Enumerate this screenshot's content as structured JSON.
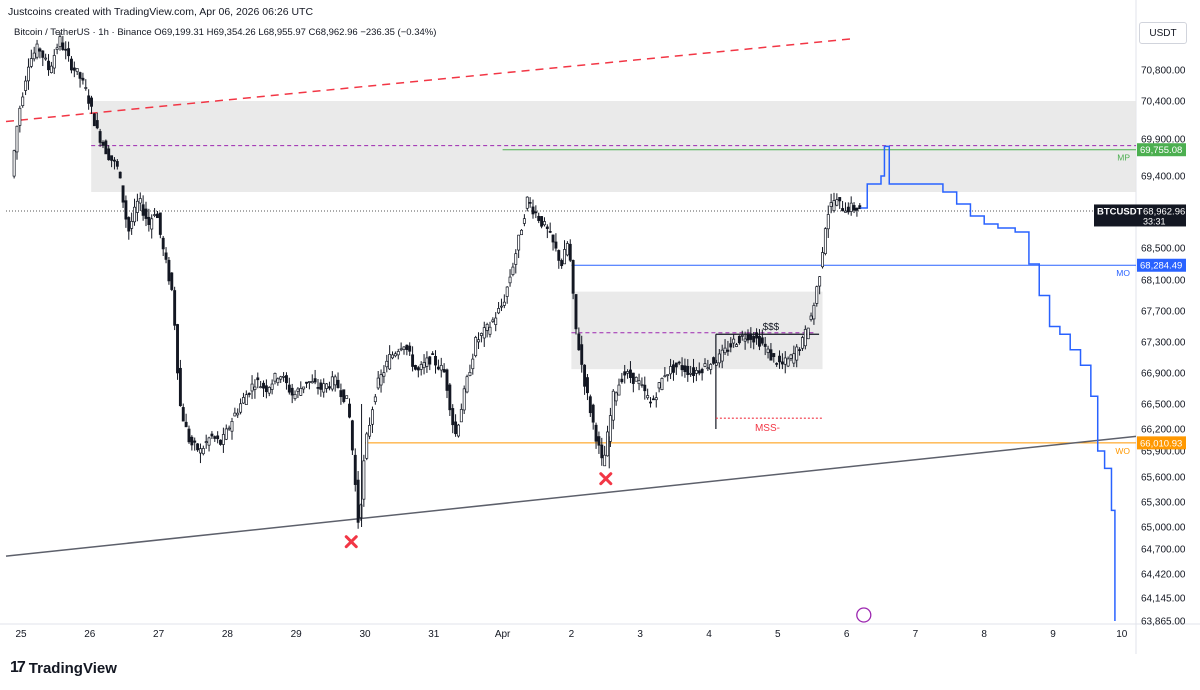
{
  "header": {
    "created_by": "Justcoins created with TradingView.com, Apr 06, 2026 06:26 UTC"
  },
  "legend": {
    "symbol": "Bitcoin / TetherUS · 1h · Binance",
    "open": "O69,199.31",
    "high": "H69,354.26",
    "low": "L68,955.97",
    "close": "C68,962.96",
    "change": "−236.35 (−0.34%)"
  },
  "quote_currency": "USDT",
  "footer": {
    "brand": "TradingView"
  },
  "colors": {
    "up": "#131722",
    "down": "#131722",
    "projection": "#2962ff",
    "zone": "#e6e6e6",
    "mp": "#4caf50",
    "mo": "#2962ff",
    "wo": "#ff9800",
    "trend_red": "#f23645",
    "mss": "#f23645"
  },
  "chart_data": {
    "type": "candlestick",
    "symbol": "BTCUSDT",
    "interval": "1h",
    "x_ticks": [
      "25",
      "26",
      "27",
      "28",
      "29",
      "30",
      "31",
      "Apr",
      "2",
      "3",
      "4",
      "5",
      "6",
      "7",
      "8",
      "9",
      "10"
    ],
    "y_ticks": [
      "70,800.00",
      "70,400.00",
      "69,900.00",
      "69,400.00",
      "68,500.00",
      "68,100.00",
      "67,700.00",
      "67,300.00",
      "66,900.00",
      "66,500.00",
      "66,200.00",
      "65,900.00",
      "65,600.00",
      "65,300.00",
      "65,000.00",
      "64,700.00",
      "64,420.00",
      "64,145.00",
      "63,865.00"
    ],
    "ylim": [
      63800,
      71400
    ],
    "price_labels": [
      {
        "name": "MP",
        "value": 69755.08,
        "text": "69,755.08"
      },
      {
        "name": "BTCUSDT",
        "value": 68962.96,
        "text": "68,962.96",
        "countdown": "33:31"
      },
      {
        "name": "MO",
        "value": 68284.49,
        "text": "68,284.49"
      },
      {
        "name": "WO",
        "value": 66010.93,
        "text": "66,010.93"
      }
    ],
    "annotations": {
      "liquidity": "$$$",
      "mss": "MSS-"
    },
    "price_path": [
      [
        24.9,
        69400
      ],
      [
        25.0,
        70200
      ],
      [
        25.15,
        70900
      ],
      [
        25.3,
        71100
      ],
      [
        25.45,
        70800
      ],
      [
        25.6,
        71200
      ],
      [
        25.75,
        70900
      ],
      [
        25.9,
        70700
      ],
      [
        26.0,
        70500
      ],
      [
        26.15,
        70000
      ],
      [
        26.3,
        69700
      ],
      [
        26.45,
        69500
      ],
      [
        26.6,
        68700
      ],
      [
        26.75,
        69100
      ],
      [
        26.9,
        68800
      ],
      [
        27.0,
        69000
      ],
      [
        27.1,
        68500
      ],
      [
        27.25,
        67900
      ],
      [
        27.35,
        66500
      ],
      [
        27.5,
        66000
      ],
      [
        27.65,
        65900
      ],
      [
        27.8,
        66100
      ],
      [
        27.95,
        66000
      ],
      [
        28.1,
        66300
      ],
      [
        28.3,
        66600
      ],
      [
        28.45,
        66800
      ],
      [
        28.6,
        66700
      ],
      [
        28.8,
        66900
      ],
      [
        29.0,
        66600
      ],
      [
        29.2,
        66800
      ],
      [
        29.4,
        66700
      ],
      [
        29.6,
        66800
      ],
      [
        29.8,
        66500
      ],
      [
        29.95,
        65000
      ],
      [
        30.05,
        66000
      ],
      [
        30.2,
        66700
      ],
      [
        30.4,
        67100
      ],
      [
        30.6,
        67300
      ],
      [
        30.8,
        66900
      ],
      [
        31.0,
        67100
      ],
      [
        31.2,
        66900
      ],
      [
        31.35,
        66100
      ],
      [
        31.5,
        66700
      ],
      [
        31.65,
        67300
      ],
      [
        31.85,
        67500
      ],
      [
        32.05,
        67800
      ],
      [
        32.25,
        68500
      ],
      [
        32.4,
        69100
      ],
      [
        32.55,
        68900
      ],
      [
        32.7,
        68700
      ],
      [
        32.9,
        68300
      ],
      [
        33.0,
        68600
      ],
      [
        33.1,
        67500
      ],
      [
        33.25,
        66700
      ],
      [
        33.4,
        66100
      ],
      [
        33.5,
        65700
      ],
      [
        33.65,
        66600
      ],
      [
        33.8,
        66900
      ],
      [
        34.0,
        66800
      ],
      [
        34.2,
        66500
      ],
      [
        34.4,
        66900
      ],
      [
        34.6,
        67000
      ],
      [
        34.8,
        66900
      ],
      [
        35.0,
        67000
      ],
      [
        35.2,
        67100
      ],
      [
        35.4,
        67300
      ],
      [
        35.6,
        67400
      ],
      [
        35.8,
        67300
      ],
      [
        35.95,
        67100
      ],
      [
        36.1,
        67000
      ],
      [
        36.25,
        67100
      ],
      [
        36.4,
        67300
      ],
      [
        36.55,
        67700
      ],
      [
        36.65,
        68200
      ],
      [
        36.75,
        68900
      ],
      [
        36.85,
        69100
      ],
      [
        37.0,
        69000
      ],
      [
        37.2,
        69000
      ]
    ],
    "projection_path": [
      [
        37.2,
        69000
      ],
      [
        37.3,
        69300
      ],
      [
        37.5,
        69400
      ],
      [
        37.55,
        69800
      ],
      [
        37.62,
        69300
      ],
      [
        37.8,
        69300
      ],
      [
        38.0,
        69300
      ],
      [
        38.2,
        69300
      ],
      [
        38.4,
        69200
      ],
      [
        38.6,
        69050
      ],
      [
        38.8,
        68900
      ],
      [
        39.0,
        68800
      ],
      [
        39.2,
        68750
      ],
      [
        39.45,
        68700
      ],
      [
        39.65,
        68300
      ],
      [
        39.8,
        67900
      ],
      [
        39.95,
        67500
      ],
      [
        40.1,
        67400
      ],
      [
        40.25,
        67200
      ],
      [
        40.4,
        67000
      ],
      [
        40.55,
        66600
      ],
      [
        40.65,
        65900
      ],
      [
        40.75,
        65700
      ],
      [
        40.85,
        65200
      ],
      [
        40.9,
        63865
      ]
    ]
  }
}
